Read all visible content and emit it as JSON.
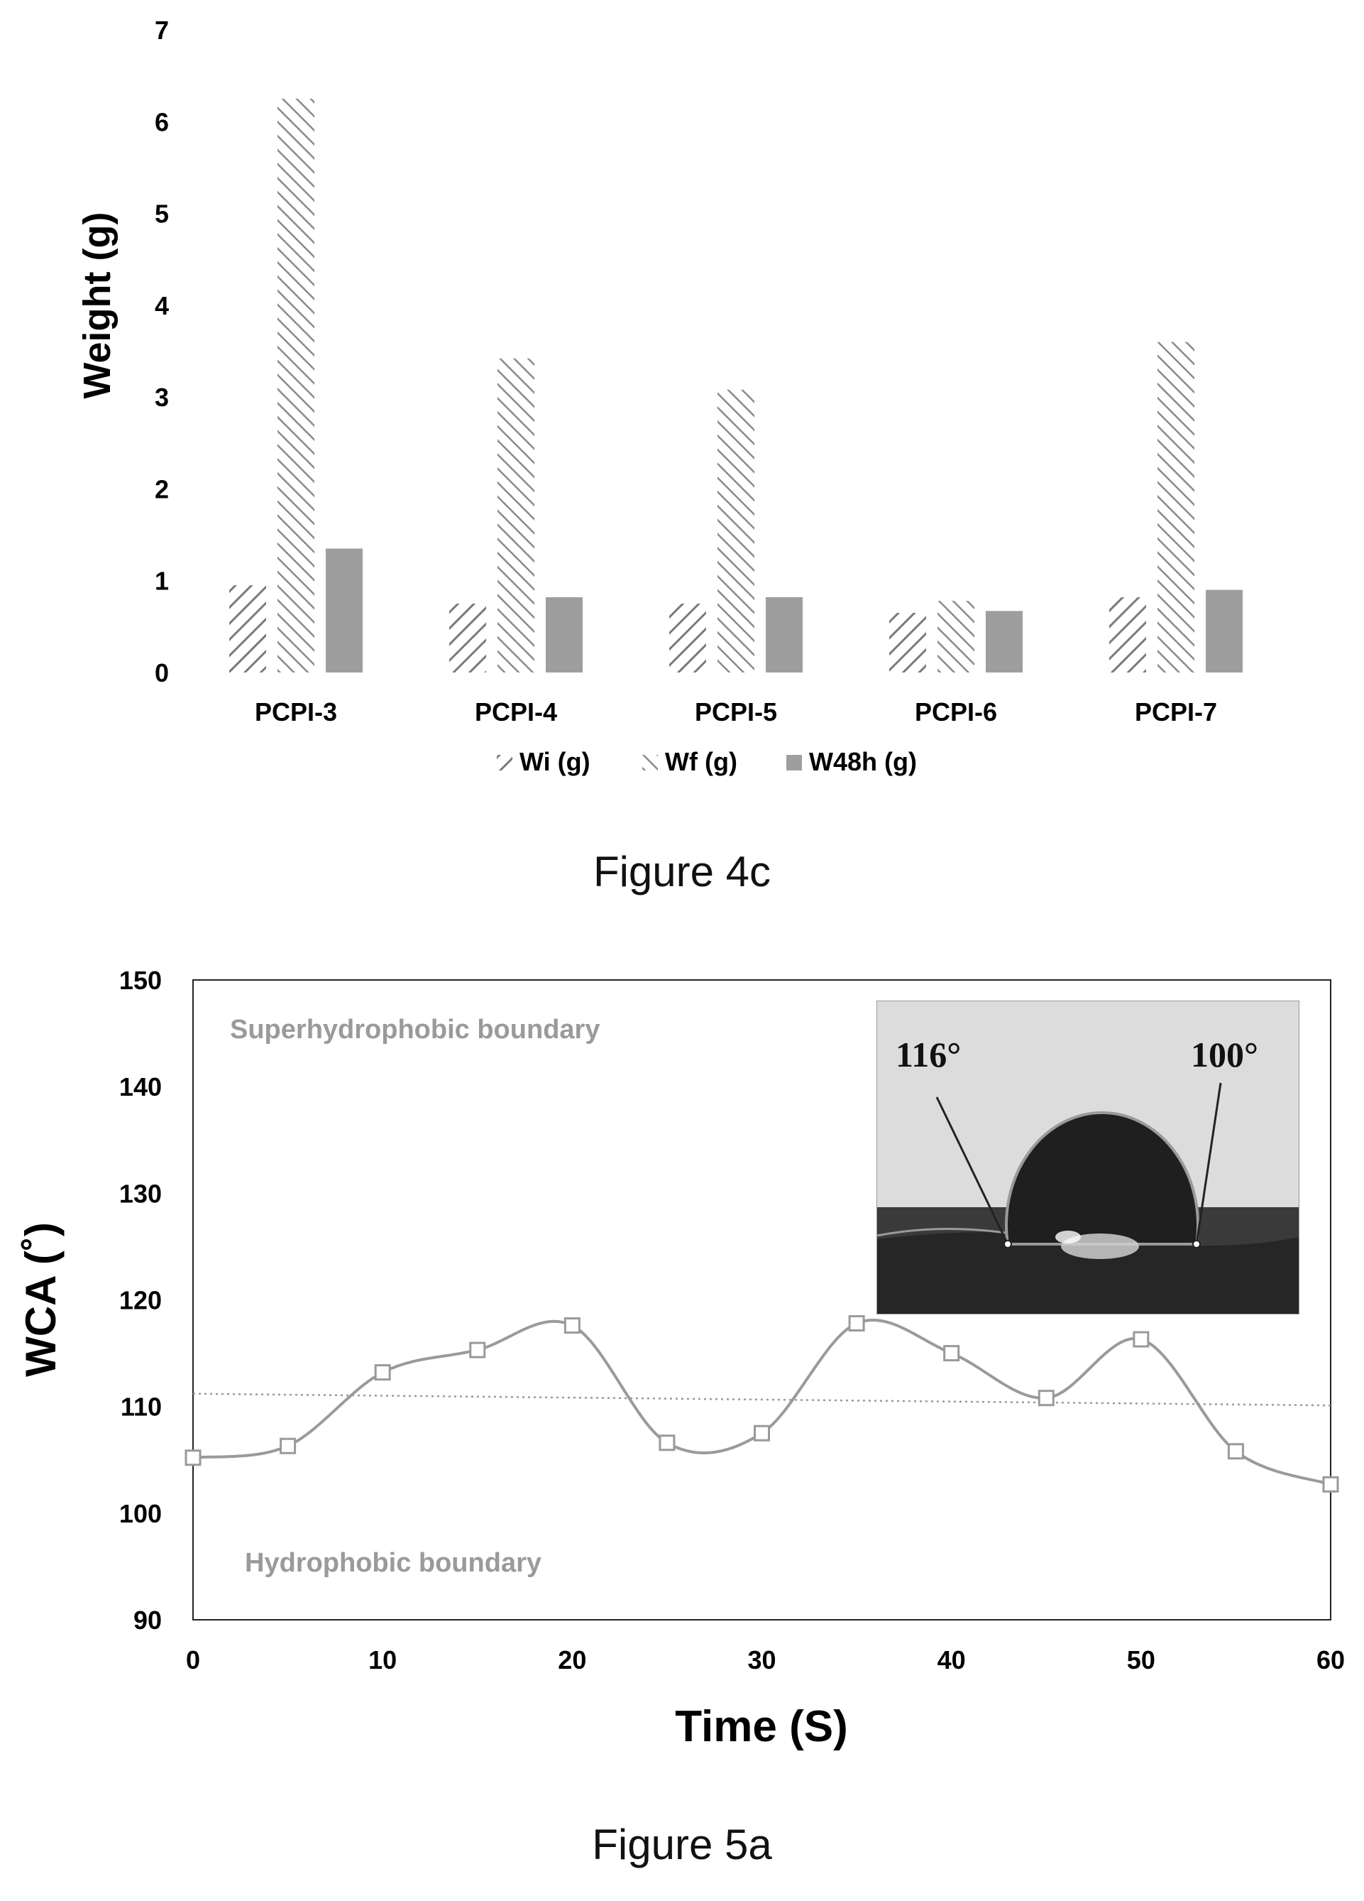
{
  "chart_data": [
    {
      "type": "bar",
      "ylabel": "Weight (g)",
      "xlabel": "",
      "ylim": [
        0,
        7
      ],
      "yticks": [
        0,
        1,
        2,
        3,
        4,
        5,
        6,
        7
      ],
      "categories": [
        "PCPI-3",
        "PCPI-4",
        "PCPI-5",
        "PCPI-6",
        "PCPI-7"
      ],
      "series": [
        {
          "name": "Wi (g)",
          "values": [
            0.95,
            0.75,
            0.75,
            0.65,
            0.82
          ],
          "pattern": "hatch-back",
          "color": "#808080"
        },
        {
          "name": "Wf (g)",
          "values": [
            6.25,
            3.42,
            3.08,
            0.78,
            3.6
          ],
          "pattern": "hatch-forward",
          "color": "#808080"
        },
        {
          "name": "W48h (g)",
          "values": [
            1.35,
            0.82,
            0.82,
            0.67,
            0.9
          ],
          "pattern": "solid",
          "color": "#9e9e9e"
        }
      ],
      "legend": "bottom",
      "grid": false,
      "caption": "Figure 4c"
    },
    {
      "type": "line",
      "xlabel": "Time (S)",
      "ylabel": "WCA (˚)",
      "xlim": [
        0,
        60
      ],
      "ylim": [
        90,
        150
      ],
      "xticks": [
        0,
        10,
        20,
        30,
        40,
        50,
        60
      ],
      "yticks": [
        90,
        100,
        110,
        120,
        130,
        140,
        150
      ],
      "series": [
        {
          "name": "",
          "x": [
            0,
            5,
            10,
            15,
            20,
            25,
            30,
            35,
            40,
            45,
            50,
            55,
            60
          ],
          "y": [
            105.2,
            106.3,
            113.2,
            115.3,
            117.6,
            106.6,
            107.5,
            117.8,
            115.0,
            110.8,
            116.3,
            105.8,
            102.7
          ],
          "color": "#9a9a9a",
          "marker": "open-square",
          "smooth": true
        }
      ],
      "trendline": {
        "x": [
          0,
          60
        ],
        "y": [
          111.2,
          110.1
        ],
        "style": "dotted",
        "color": "#9a9a9a"
      },
      "annotations": {
        "superhydrophobic": "Superhydrophobic boundary",
        "hydrophobic": "Hydrophobic boundary"
      },
      "inset": {
        "left_angle": "116°",
        "right_angle": "100°",
        "description": "water droplet contact-angle photo"
      },
      "grid": false,
      "caption": "Figure 5a"
    }
  ]
}
